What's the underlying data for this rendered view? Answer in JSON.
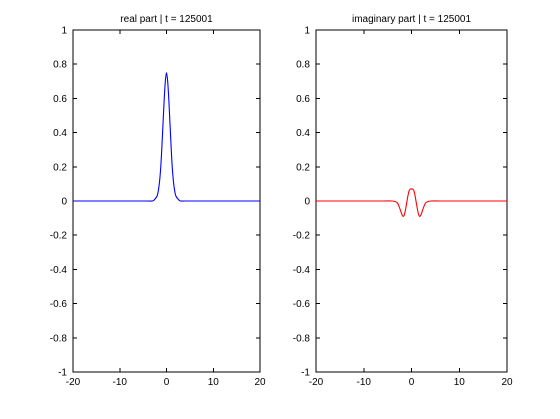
{
  "chart_data": [
    {
      "type": "line",
      "title": "real part | t = 125001",
      "xlim": [
        -20,
        20
      ],
      "ylim": [
        -1,
        1
      ],
      "xticks": [
        "-20",
        "-10",
        "0",
        "10",
        "20"
      ],
      "yticks": [
        "1",
        "0.8",
        "0.6",
        "0.4",
        "0.2",
        "0",
        "-0.2",
        "-0.4",
        "-0.6",
        "-0.8",
        "-1"
      ],
      "grid": false,
      "series": [
        {
          "color": "#0000ff",
          "x": [
            -20,
            -10,
            -6,
            -4,
            -3,
            -2.5,
            -2,
            -1.75,
            -1.5,
            -1.25,
            -1,
            -0.75,
            -0.5,
            -0.25,
            0,
            0.25,
            0.5,
            0.75,
            1,
            1.25,
            1.5,
            1.75,
            2,
            2.5,
            3,
            4,
            6,
            10,
            20
          ],
          "y": [
            0,
            0,
            0,
            0,
            0,
            0.01,
            0.03,
            0.06,
            0.11,
            0.19,
            0.31,
            0.45,
            0.59,
            0.7,
            0.75,
            0.7,
            0.59,
            0.45,
            0.31,
            0.19,
            0.11,
            0.06,
            0.03,
            0.01,
            0,
            0,
            0,
            0,
            0
          ]
        }
      ]
    },
    {
      "type": "line",
      "title": "imaginary part | t = 125001",
      "xlim": [
        -20,
        20
      ],
      "ylim": [
        -1,
        1
      ],
      "xticks": [
        "-20",
        "-10",
        "0",
        "10",
        "20"
      ],
      "yticks": [
        "1",
        "0.8",
        "0.6",
        "0.4",
        "0.2",
        "0",
        "-0.2",
        "-0.4",
        "-0.6",
        "-0.8",
        "-1"
      ],
      "grid": false,
      "series": [
        {
          "color": "#ff0000",
          "x": [
            -20,
            -10,
            -6,
            -4,
            -3,
            -2.5,
            -2,
            -1.75,
            -1.5,
            -1.25,
            -1,
            -0.75,
            -0.5,
            -0.25,
            0,
            0.25,
            0.5,
            0.75,
            1,
            1.25,
            1.5,
            1.75,
            2,
            2.5,
            3,
            4,
            6,
            10,
            20
          ],
          "y": [
            0,
            0,
            0,
            0,
            -0.01,
            -0.04,
            -0.08,
            -0.09,
            -0.08,
            -0.05,
            -0.01,
            0.03,
            0.06,
            0.07,
            0.07,
            0.07,
            0.06,
            0.03,
            -0.01,
            -0.05,
            -0.08,
            -0.09,
            -0.08,
            -0.04,
            -0.01,
            0,
            0,
            0,
            0
          ]
        }
      ]
    }
  ]
}
